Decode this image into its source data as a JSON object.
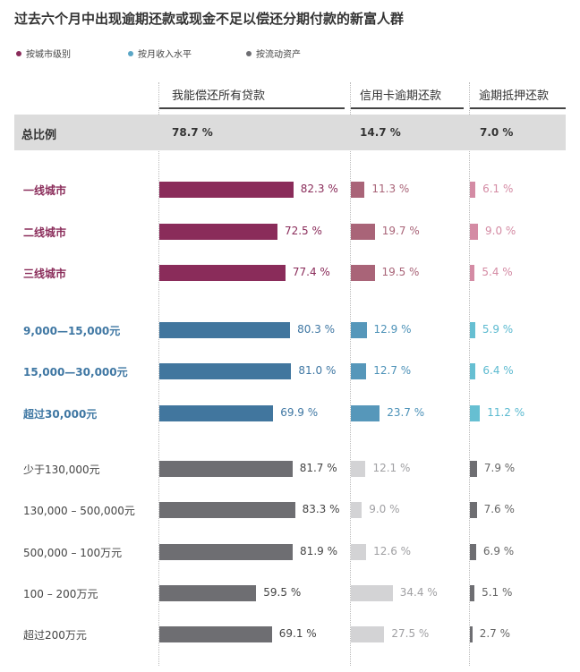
{
  "title": "过去六个月中出现逾期还款或现金不足以偿还分期付款的新富人群",
  "legend": [
    {
      "label": "按城市级别",
      "color": "#8a2c5a"
    },
    {
      "label": "按月收入水平",
      "color": "#5aa6c6"
    },
    {
      "label": "按流动资产",
      "color": "#6e6e72"
    }
  ],
  "columns": [
    "我能偿还所有贷款",
    "信用卡逾期还款",
    "逾期抵押还款"
  ],
  "total": {
    "label": "总比例",
    "values": [
      "78.7 %",
      "14.7 %",
      "7.0 %"
    ]
  },
  "chart_data": {
    "type": "bar",
    "title": "过去六个月中出现逾期还款或现金不足以偿还分期付款的新富人群",
    "columns": [
      "我能偿还所有贷款",
      "信用卡逾期还款",
      "逾期抵押还款"
    ],
    "total": [
      78.7,
      14.7,
      7.0
    ],
    "groups": [
      {
        "name": "按城市级别",
        "colors": [
          "#8a2c5a",
          "#a96478",
          "#d48ba4"
        ],
        "rows": [
          {
            "category": "一线城市",
            "values": [
              82.3,
              11.3,
              6.1
            ]
          },
          {
            "category": "二线城市",
            "values": [
              72.5,
              19.7,
              9.0
            ]
          },
          {
            "category": "三线城市",
            "values": [
              77.4,
              19.5,
              5.4
            ]
          }
        ]
      },
      {
        "name": "按月收入水平",
        "colors": [
          "#41769e",
          "#5697ba",
          "#66bfd2"
        ],
        "rows": [
          {
            "category": "9,000—15,000元",
            "values": [
              80.3,
              12.9,
              5.9
            ]
          },
          {
            "category": "15,000—30,000元",
            "values": [
              81.0,
              12.7,
              6.4
            ]
          },
          {
            "category": "超过30,000元",
            "values": [
              69.9,
              23.7,
              11.2
            ]
          }
        ]
      },
      {
        "name": "按流动资产",
        "colors": [
          "#6e6e72",
          "#d3d3d5",
          "#6e6e72"
        ],
        "rows": [
          {
            "category": "少于130,000元",
            "values": [
              81.7,
              12.1,
              7.9
            ]
          },
          {
            "category": "130,000 – 500,000元",
            "values": [
              83.3,
              9.0,
              7.6
            ]
          },
          {
            "category": "500,000 – 100万元",
            "values": [
              81.9,
              12.6,
              6.9
            ]
          },
          {
            "category": "100 – 200万元",
            "values": [
              59.5,
              34.4,
              5.1
            ]
          },
          {
            "category": "超过200万元",
            "values": [
              69.1,
              27.5,
              2.7
            ]
          }
        ]
      }
    ]
  }
}
